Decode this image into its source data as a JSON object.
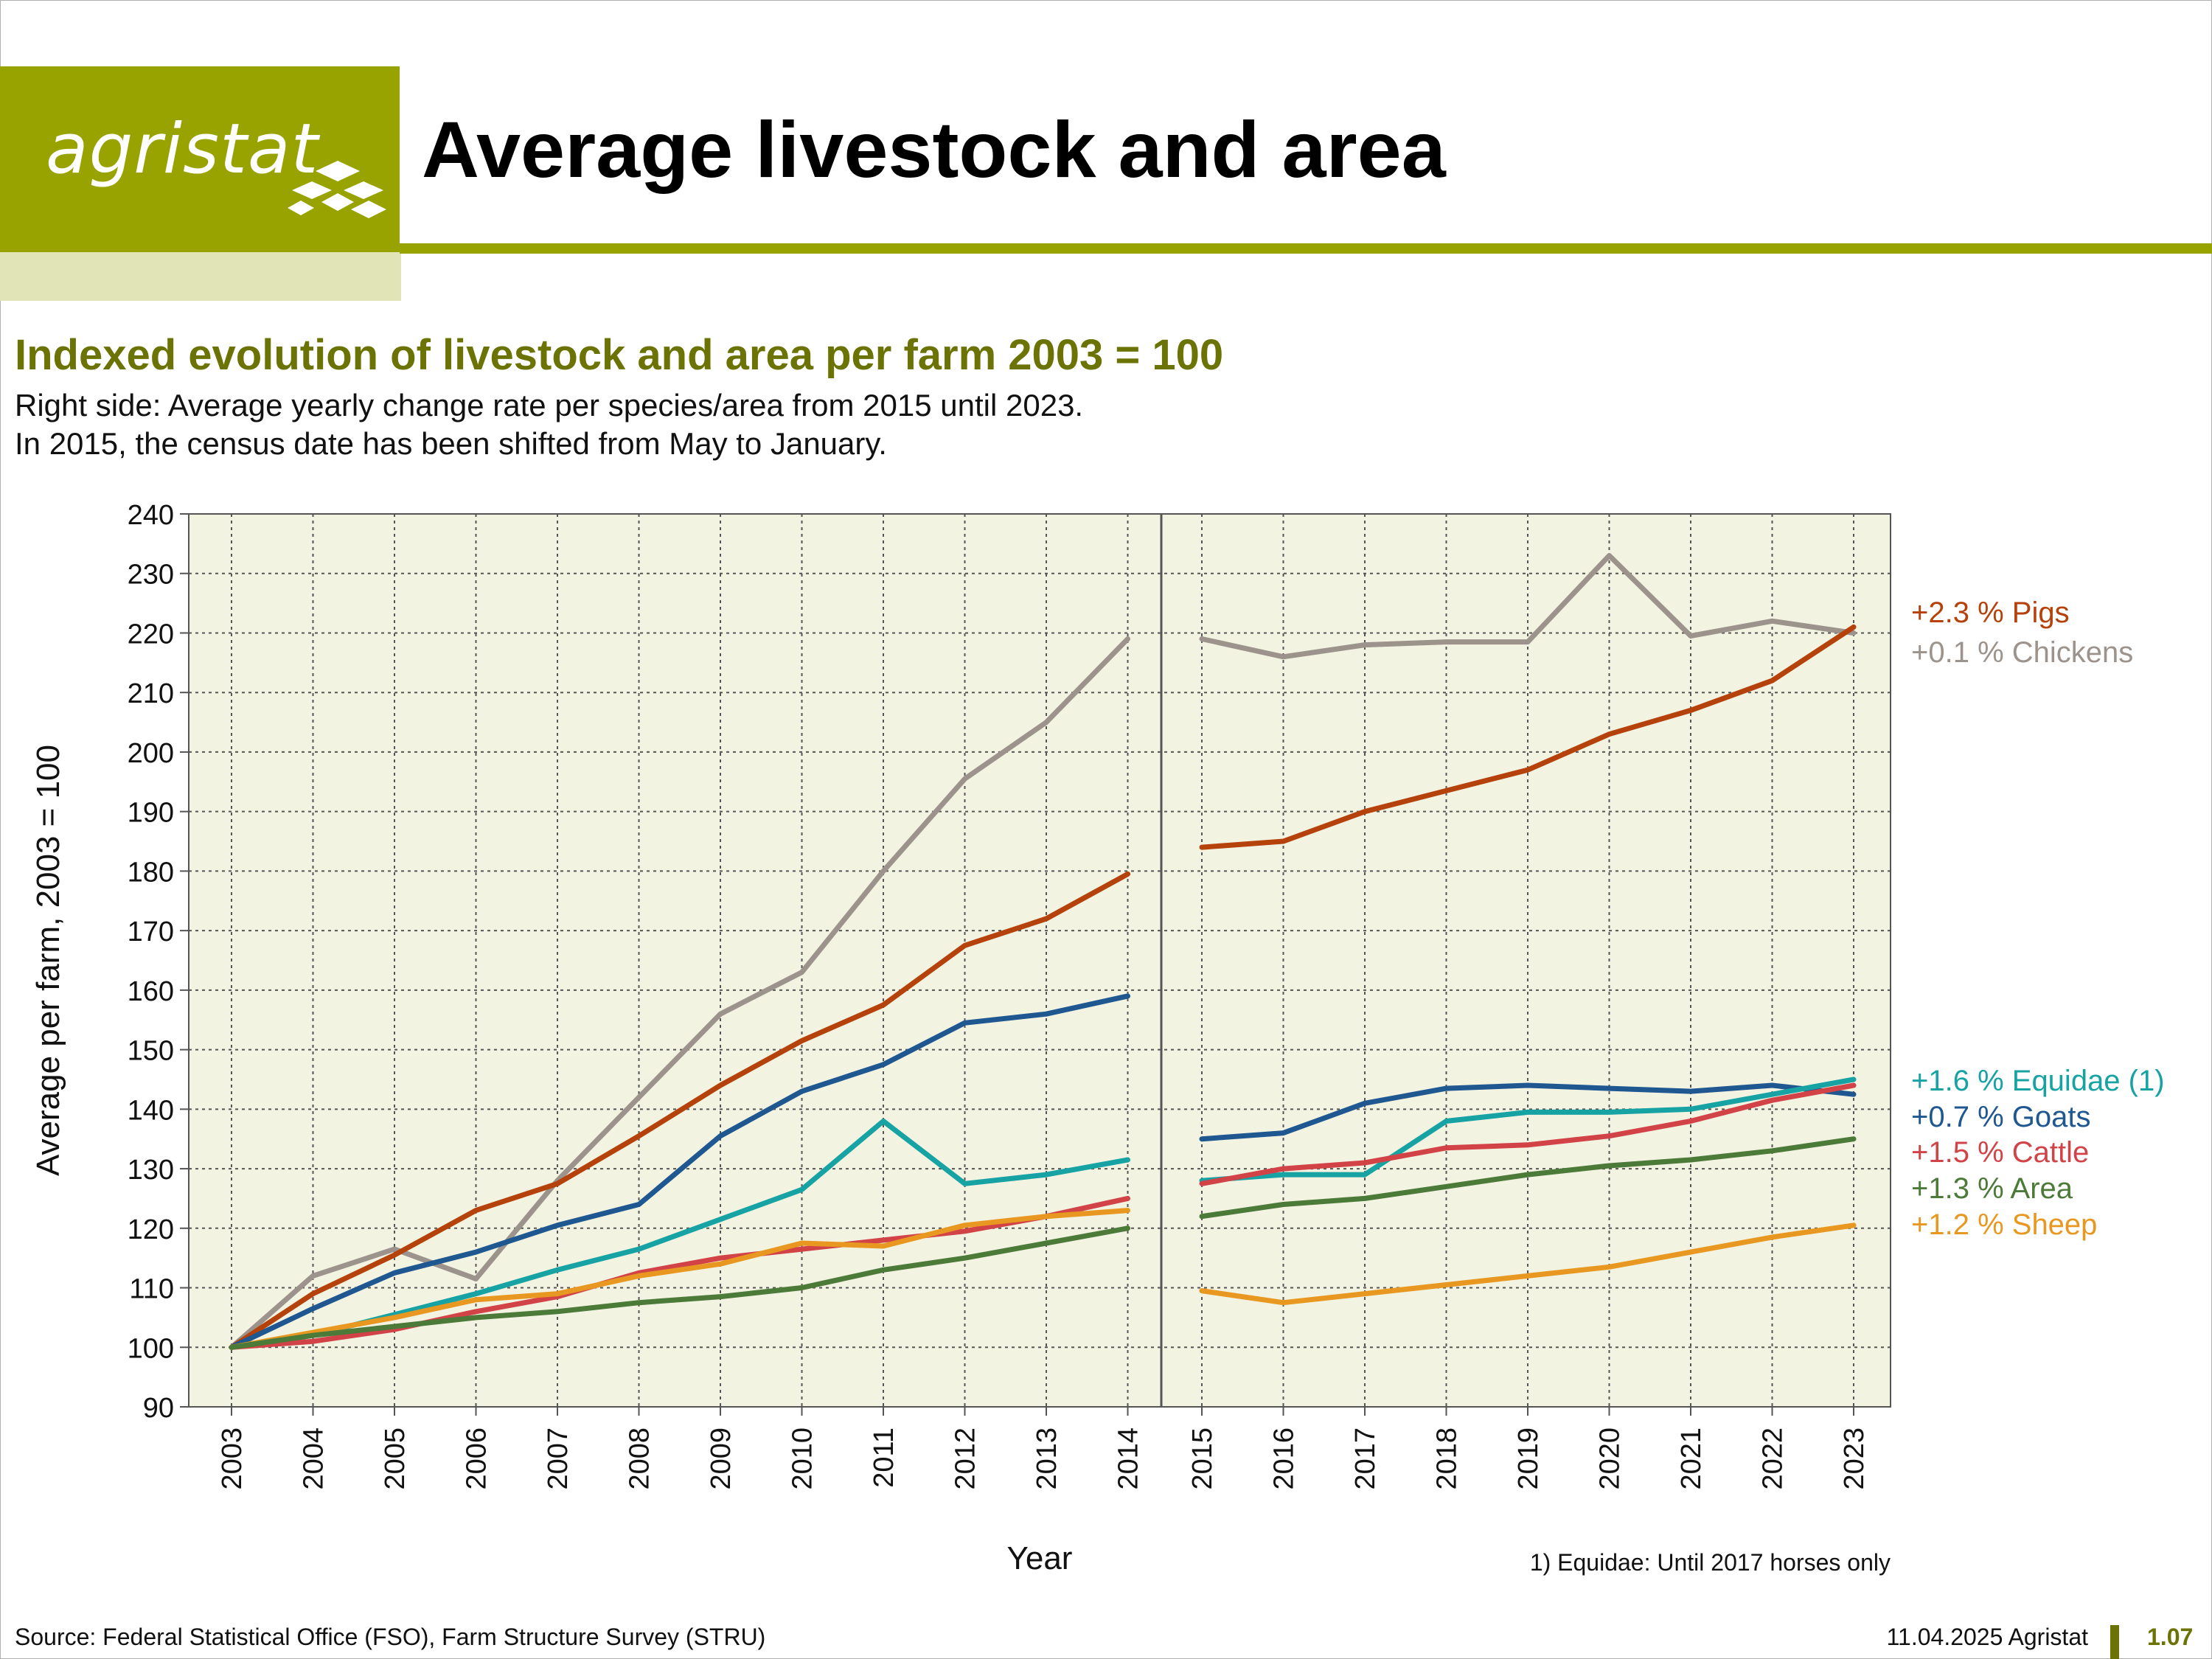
{
  "header": {
    "logo_text": "agristat",
    "title": "Average livestock and area"
  },
  "subtitle": "Indexed evolution of livestock and area per farm 2003 = 100",
  "description": [
    "Right side: Average yearly change rate per species/area from 2015 until 2023.",
    "In 2015, the census date has been shifted from May to January."
  ],
  "footnote": "1) Equidae: Until 2017 horses only",
  "footer": {
    "source": "Source: Federal Statistical Office (FSO), Farm Structure Survey (STRU)",
    "date": "11.04.2025 Agristat",
    "page": "1.07"
  },
  "colors": {
    "brand": "#99a300",
    "brand_light": "#e1e4b6",
    "subtitle": "#6b7304",
    "plot_bg": "#f3f3e2"
  },
  "chart_data": {
    "type": "line",
    "xlabel": "Year",
    "ylabel": "Average per farm, 2003 = 100",
    "ylim": [
      90,
      240
    ],
    "yticks": [
      90,
      100,
      110,
      120,
      130,
      140,
      150,
      160,
      170,
      180,
      190,
      200,
      210,
      220,
      230,
      240
    ],
    "grid": true,
    "legend": "right",
    "panels": [
      {
        "name": "left",
        "categories": [
          "2003",
          "2004",
          "2005",
          "2006",
          "2007",
          "2008",
          "2009",
          "2010",
          "2011",
          "2012",
          "2013",
          "2014"
        ],
        "series": [
          {
            "name": "Chickens",
            "color": "#9b938c",
            "values": [
              100,
              112,
              116.5,
              111.5,
              128,
              142,
              156,
              163,
              180,
              195.5,
              205,
              219
            ]
          },
          {
            "name": "Pigs",
            "color": "#b5410b",
            "values": [
              100,
              109,
              115.5,
              123,
              127.5,
              135.5,
              144,
              151.5,
              157.5,
              167.5,
              172,
              179.5
            ]
          },
          {
            "name": "Goats",
            "color": "#1f5790",
            "values": [
              100,
              106.5,
              112.5,
              116,
              120.5,
              124,
              135.5,
              143,
              147.5,
              154.5,
              156,
              159
            ]
          },
          {
            "name": "Equidae (1)",
            "color": "#17a3a3",
            "values": [
              100,
              102,
              105.5,
              109,
              113,
              116.5,
              121.5,
              126.5,
              138,
              127.5,
              129,
              131.5
            ]
          },
          {
            "name": "Cattle",
            "color": "#d24348",
            "values": [
              100,
              101,
              103,
              106,
              108.5,
              112.5,
              115,
              116.5,
              118,
              119.5,
              122,
              125
            ]
          },
          {
            "name": "Sheep",
            "color": "#e89820",
            "values": [
              100,
              102.5,
              105,
              108,
              109,
              112,
              114,
              117.5,
              117,
              120.5,
              122,
              123
            ]
          },
          {
            "name": "Area",
            "color": "#4c7a39",
            "values": [
              100,
              102,
              103.5,
              105,
              106,
              107.5,
              108.5,
              110,
              113,
              115,
              117.5,
              120
            ]
          }
        ]
      },
      {
        "name": "right",
        "categories": [
          "2015",
          "2016",
          "2017",
          "2018",
          "2019",
          "2020",
          "2021",
          "2022",
          "2023"
        ],
        "series": [
          {
            "name": "Chickens",
            "color": "#9b938c",
            "change": "+0.1 %",
            "values": [
              219,
              216,
              218,
              218.5,
              218.5,
              233,
              219.5,
              222,
              220
            ]
          },
          {
            "name": "Pigs",
            "color": "#b5410b",
            "change": "+2.3 %",
            "values": [
              184,
              185,
              190,
              193.5,
              197,
              203,
              207,
              212,
              221
            ]
          },
          {
            "name": "Goats",
            "color": "#1f5790",
            "change": "+0.7 %",
            "values": [
              135,
              136,
              141,
              143.5,
              144,
              143.5,
              143,
              144,
              142.5
            ]
          },
          {
            "name": "Equidae (1)",
            "color": "#17a3a3",
            "change": "+1.6 %",
            "values": [
              128,
              129,
              129,
              138,
              139.5,
              139.5,
              140,
              142.5,
              145
            ]
          },
          {
            "name": "Cattle",
            "color": "#d24348",
            "change": "+1.5 %",
            "values": [
              127.5,
              130,
              131,
              133.5,
              134,
              135.5,
              138,
              141.5,
              144
            ]
          },
          {
            "name": "Area",
            "color": "#4c7a39",
            "change": "+1.3 %",
            "values": [
              122,
              124,
              125,
              127,
              129,
              130.5,
              131.5,
              133,
              135
            ]
          },
          {
            "name": "Sheep",
            "color": "#e89820",
            "change": "+1.2 %",
            "values": [
              109.5,
              107.5,
              109,
              110.5,
              112,
              113.5,
              116,
              118.5,
              120.5
            ]
          }
        ]
      }
    ],
    "legend_entries": [
      {
        "text": "+2.3 % Pigs",
        "color": "#b5410b"
      },
      {
        "text": "+0.1 % Chickens",
        "color": "#9b938c"
      },
      {
        "text": "+1.6 % Equidae (1)",
        "color": "#17a3a3"
      },
      {
        "text": "+0.7 % Goats",
        "color": "#1f5790"
      },
      {
        "text": "+1.5 % Cattle",
        "color": "#d24348"
      },
      {
        "text": "+1.3 % Area",
        "color": "#4c7a39"
      },
      {
        "text": "+1.2 % Sheep",
        "color": "#e89820"
      }
    ]
  }
}
